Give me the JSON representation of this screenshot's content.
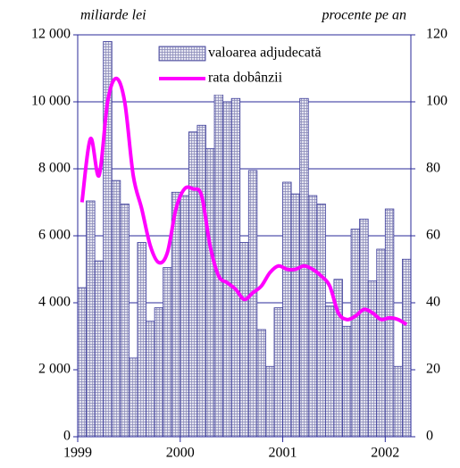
{
  "chart_data": {
    "type": "bar-line",
    "y_label": "miliarde lei",
    "y2_label": "procente pe an",
    "categories": [
      "1999",
      null,
      null,
      null,
      null,
      null,
      null,
      null,
      null,
      null,
      null,
      null,
      "2000",
      null,
      null,
      null,
      null,
      null,
      null,
      null,
      null,
      null,
      null,
      null,
      "2001",
      null,
      null,
      null,
      null,
      null,
      null,
      null,
      null,
      null,
      null,
      null,
      "2002",
      null,
      null
    ],
    "series": [
      {
        "name": "valoarea adjudecată",
        "color": "#3a3a9a",
        "kind": "bar",
        "values": [
          4450,
          7040,
          5250,
          11800,
          7650,
          6950,
          2350,
          5800,
          3450,
          3850,
          5050,
          7300,
          7200,
          9100,
          9300,
          8600,
          10250,
          10000,
          10100,
          5800,
          7950,
          3200,
          2100,
          3850,
          7600,
          7250,
          10100,
          7200,
          6950,
          3900,
          4700,
          3300,
          6200,
          6500,
          4650,
          5600,
          6800,
          2100,
          5300
        ]
      },
      {
        "name": "rata dobânzii",
        "color": "#ff00ff",
        "kind": "line",
        "axis": "y2",
        "values": [
          70,
          89,
          78,
          100,
          107,
          100,
          78,
          68,
          57,
          52,
          55,
          68,
          74,
          74,
          72,
          57,
          48,
          46,
          44,
          41,
          43,
          45,
          49,
          51,
          50,
          50,
          51,
          50,
          48,
          45,
          37,
          35,
          36,
          38,
          37,
          35,
          35.5,
          35,
          33.5
        ]
      }
    ],
    "ylim": [
      0,
      12000
    ],
    "yticks": [
      0,
      {
        "value": 2000,
        "label": "2 000"
      },
      {
        "value": 4000,
        "label": "4 000"
      },
      {
        "value": 6000,
        "label": "6 000"
      },
      {
        "value": 8000,
        "label": "8 000"
      },
      {
        "value": 10000,
        "label": "10 000"
      },
      {
        "value": 12000,
        "label": "12 000"
      }
    ],
    "y2lim": [
      0,
      120
    ],
    "y2ticks": [
      0,
      20,
      40,
      60,
      80,
      100,
      120
    ],
    "grid": true,
    "legend": "top"
  }
}
